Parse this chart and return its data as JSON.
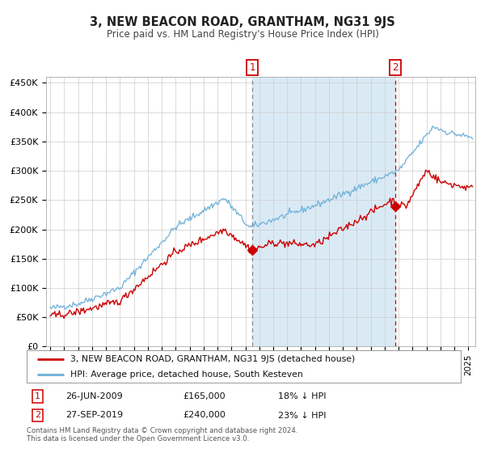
{
  "title": "3, NEW BEACON ROAD, GRANTHAM, NG31 9JS",
  "subtitle": "Price paid vs. HM Land Registry's House Price Index (HPI)",
  "legend_line1": "3, NEW BEACON ROAD, GRANTHAM, NG31 9JS (detached house)",
  "legend_line2": "HPI: Average price, detached house, South Kesteven",
  "annotation1_date": "26-JUN-2009",
  "annotation1_price": "£165,000",
  "annotation1_hpi": "18% ↓ HPI",
  "annotation1_year": 2009.49,
  "annotation1_value": 165000,
  "annotation2_date": "27-SEP-2019",
  "annotation2_price": "£240,000",
  "annotation2_hpi": "23% ↓ HPI",
  "annotation2_year": 2019.75,
  "annotation2_value": 240000,
  "hpi_color": "#6baed6",
  "price_color": "#cc0000",
  "shade_color": "#daeaf5",
  "background_color": "#ffffff",
  "grid_color": "#cccccc",
  "footer": "Contains HM Land Registry data © Crown copyright and database right 2024.\nThis data is licensed under the Open Government Licence v3.0.",
  "ylim": [
    0,
    460000
  ],
  "yticks": [
    0,
    50000,
    100000,
    150000,
    200000,
    250000,
    300000,
    350000,
    400000,
    450000
  ],
  "ytick_labels": [
    "£0",
    "£50K",
    "£100K",
    "£150K",
    "£200K",
    "£250K",
    "£300K",
    "£350K",
    "£400K",
    "£450K"
  ],
  "xlim_start": 1994.7,
  "xlim_end": 2025.5
}
